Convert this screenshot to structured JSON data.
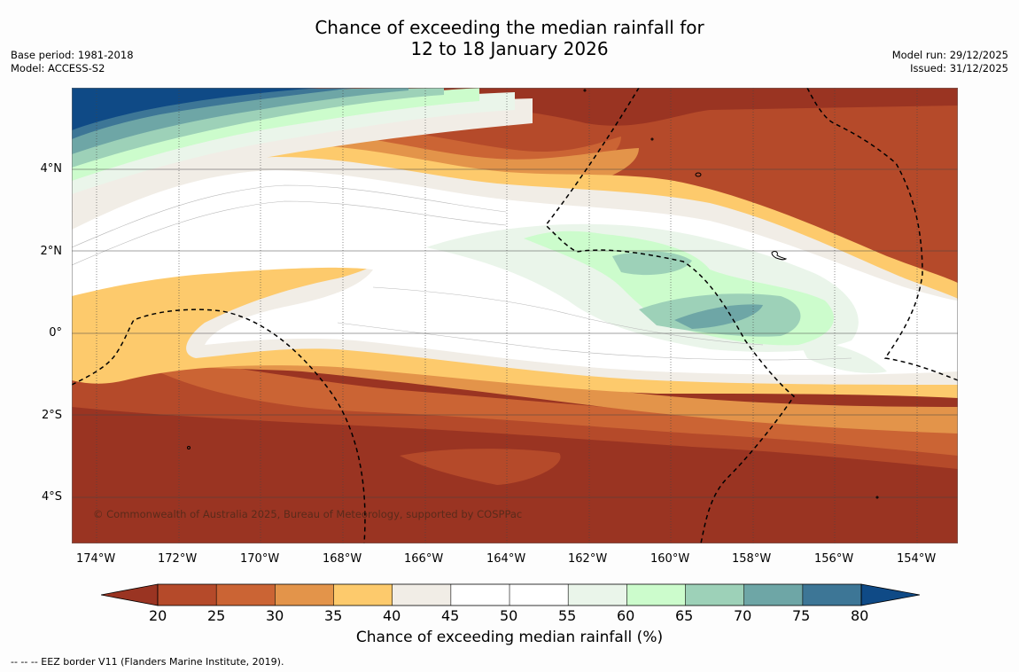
{
  "title": {
    "line1": "Chance of exceeding the median rainfall for",
    "line2": "12 to 18 January 2026"
  },
  "meta_left": {
    "base_period": "Base period: 1981-2018",
    "model": "Model: ACCESS-S2"
  },
  "meta_right": {
    "model_run": "Model run: 29/12/2025",
    "issued": "Issued: 31/12/2025"
  },
  "map": {
    "lat_labels": [
      "4°N",
      "2°N",
      "0°",
      "2°S",
      "4°S"
    ],
    "lon_labels": [
      "174°W",
      "172°W",
      "170°W",
      "168°W",
      "166°W",
      "164°W",
      "162°W",
      "160°W",
      "158°W",
      "156°W",
      "154°W"
    ],
    "copyright": "© Commonwealth of Australia 2025, Bureau of Meteorology, supported by COSPPac"
  },
  "colorbar": {
    "title": "Chance of exceeding median rainfall (%)",
    "ticks": [
      "20",
      "25",
      "30",
      "35",
      "40",
      "45",
      "50",
      "55",
      "60",
      "65",
      "70",
      "75",
      "80"
    ],
    "colors": [
      "#9a3422",
      "#b54a2a",
      "#cb6434",
      "#e3944a",
      "#fdca6c",
      "#f1ede6",
      "#ffffff",
      "#ffffff",
      "#eaf5ea",
      "#ccfccc",
      "#9dd1b8",
      "#6ea6a6",
      "#3d7696",
      "#0f4a86"
    ]
  },
  "footnote": "--  --  -- EEZ border V11 (Flanders Marine Institute, 2019)."
}
